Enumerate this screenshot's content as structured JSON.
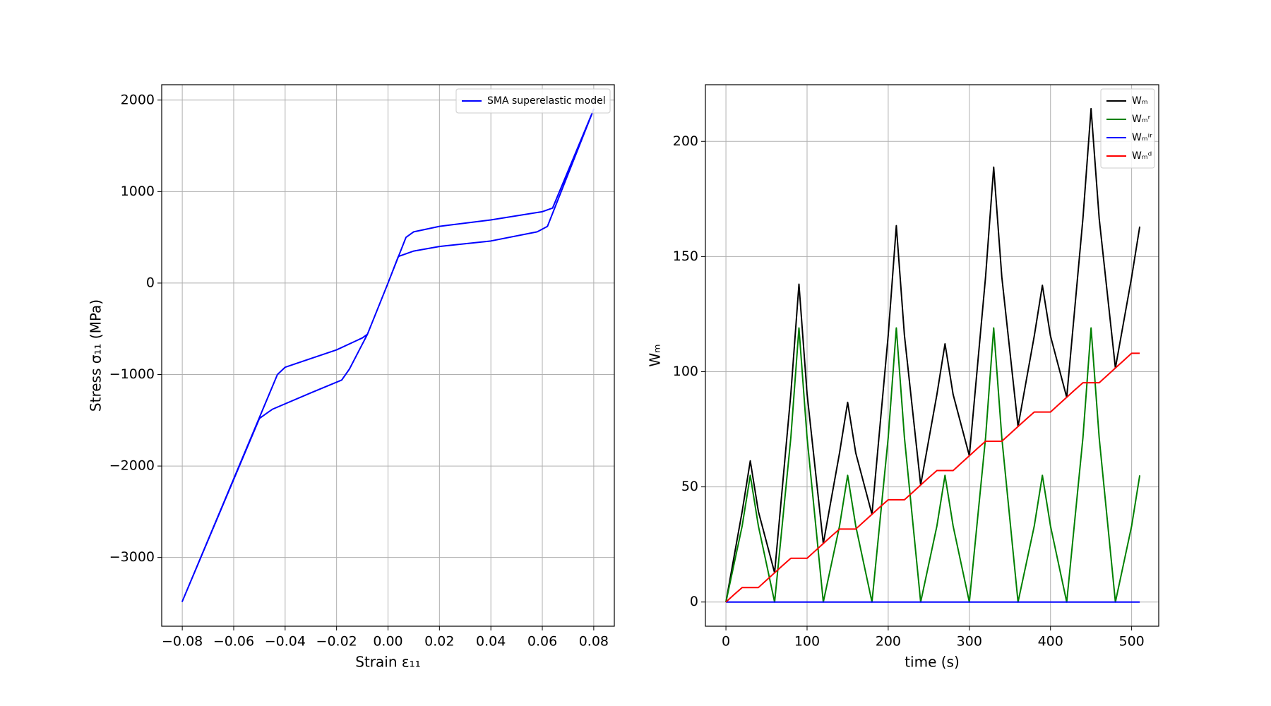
{
  "chart_data": [
    {
      "type": "line",
      "xlabel": "Strain ε₁₁",
      "ylabel": "Stress σ₁₁ (MPa)",
      "xlim": [
        -0.088,
        0.088
      ],
      "ylim": [
        -3751,
        2168
      ],
      "xticks": [
        {
          "value": -0.08,
          "label": "−0.08"
        },
        {
          "value": -0.06,
          "label": "−0.06"
        },
        {
          "value": -0.04,
          "label": "−0.04"
        },
        {
          "value": -0.02,
          "label": "−0.02"
        },
        {
          "value": 0,
          "label": "0.00"
        },
        {
          "value": 0.02,
          "label": "0.02"
        },
        {
          "value": 0.04,
          "label": "0.04"
        },
        {
          "value": 0.06,
          "label": "0.06"
        },
        {
          "value": 0.08,
          "label": "0.08"
        }
      ],
      "yticks": [
        {
          "value": -3000,
          "label": "−3000"
        },
        {
          "value": -2000,
          "label": "−2000"
        },
        {
          "value": -1000,
          "label": "−1000"
        },
        0,
        1000,
        2000
      ],
      "grid": true,
      "legend": "upper right",
      "series": [
        {
          "name": "SMA superelastic model",
          "color": "#0000ff",
          "x": [
            0,
            0.007,
            0.01,
            0.02,
            0.04,
            0.06,
            0.064,
            0.08,
            0.062,
            0.058,
            0.04,
            0.02,
            0.01,
            0.004,
            0,
            -0.008,
            -0.015,
            -0.018,
            -0.03,
            -0.045,
            -0.05,
            -0.08,
            -0.043,
            -0.04,
            -0.02,
            -0.01,
            -0.008,
            0
          ],
          "values": [
            0,
            500,
            560,
            620,
            690,
            780,
            820,
            1900,
            620,
            560,
            460,
            400,
            350,
            290,
            0,
            -560,
            -940,
            -1060,
            -1200,
            -1380,
            -1480,
            -3480,
            -1000,
            -920,
            -730,
            -600,
            -560,
            0
          ]
        }
      ]
    },
    {
      "type": "line",
      "xlabel": "time (s)",
      "ylabel": "Wₘ",
      "xlim": [
        -25.3,
        533.4
      ],
      "ylim": [
        -10.5,
        224.6
      ],
      "xticks": [
        0,
        100,
        200,
        300,
        400,
        500
      ],
      "yticks": [
        0,
        50,
        100,
        150,
        200
      ],
      "grid": true,
      "legend": "upper right",
      "x": [
        0,
        10,
        20,
        30,
        40,
        50,
        60,
        70,
        80,
        90,
        100,
        110,
        120,
        130,
        140,
        150,
        160,
        170,
        180,
        190,
        200,
        210,
        220,
        230,
        240,
        250,
        260,
        270,
        280,
        290,
        300,
        310,
        320,
        330,
        340,
        350,
        360,
        370,
        380,
        390,
        400,
        410,
        420,
        430,
        440,
        450,
        460,
        470,
        480,
        490,
        500,
        510
      ],
      "series": [
        {
          "name": "Wₘ",
          "color": "#000000",
          "values": [
            0,
            19.7,
            39.3,
            61.3,
            39.3,
            26,
            12.7,
            51.6,
            90.4,
            138,
            90.4,
            57.9,
            25.4,
            45.1,
            64.7,
            86.7,
            64.7,
            51.4,
            38.1,
            77,
            115.8,
            163.4,
            115.8,
            83.3,
            50.8,
            70.5,
            90.1,
            112.1,
            90.1,
            76.8,
            63.5,
            102.4,
            141.2,
            188.8,
            141.2,
            108.7,
            76.2,
            95.9,
            115.5,
            137.5,
            115.5,
            102.2,
            88.9,
            127.8,
            166.6,
            214.2,
            166.6,
            134.1,
            101.6,
            121.3,
            141,
            163
          ]
        },
        {
          "name": "Wₘʳ",
          "color": "#008000",
          "values": [
            0,
            16.5,
            33,
            55,
            33,
            16.5,
            0,
            35.7,
            71.4,
            119,
            71.4,
            35.7,
            0,
            16.5,
            33,
            55,
            33,
            16.5,
            0,
            35.7,
            71.4,
            119,
            71.4,
            35.7,
            0,
            16.5,
            33,
            55,
            33,
            16.5,
            0,
            35.7,
            71.4,
            119,
            71.4,
            35.7,
            0,
            16.5,
            33,
            55,
            33,
            16.5,
            0,
            35.7,
            71.4,
            119,
            71.4,
            35.7,
            0,
            16.5,
            33,
            55
          ]
        },
        {
          "name": "Wₘⁱʳ",
          "color": "#0000ff",
          "values": [
            0,
            0,
            0,
            0,
            0,
            0,
            0,
            0,
            0,
            0,
            0,
            0,
            0,
            0,
            0,
            0,
            0,
            0,
            0,
            0,
            0,
            0,
            0,
            0,
            0,
            0,
            0,
            0,
            0,
            0,
            0,
            0,
            0,
            0,
            0,
            0,
            0,
            0,
            0,
            0,
            0,
            0,
            0,
            0,
            0,
            0,
            0,
            0,
            0,
            0,
            0,
            0
          ]
        },
        {
          "name": "Wₘᵈ",
          "color": "#ff0000",
          "values": [
            0,
            3.2,
            6.3,
            6.3,
            6.3,
            9.5,
            12.7,
            15.9,
            19,
            19,
            19,
            22.2,
            25.4,
            28.6,
            31.7,
            31.7,
            31.7,
            34.9,
            38.1,
            41.3,
            44.4,
            44.4,
            44.4,
            47.6,
            50.8,
            54,
            57.1,
            57.1,
            57.1,
            60.3,
            63.5,
            66.7,
            69.8,
            69.8,
            69.8,
            73,
            76.2,
            79.4,
            82.5,
            82.5,
            82.5,
            85.7,
            88.9,
            92.1,
            95.2,
            95.2,
            95.2,
            98.4,
            101.6,
            104.8,
            108,
            108
          ]
        }
      ]
    }
  ]
}
